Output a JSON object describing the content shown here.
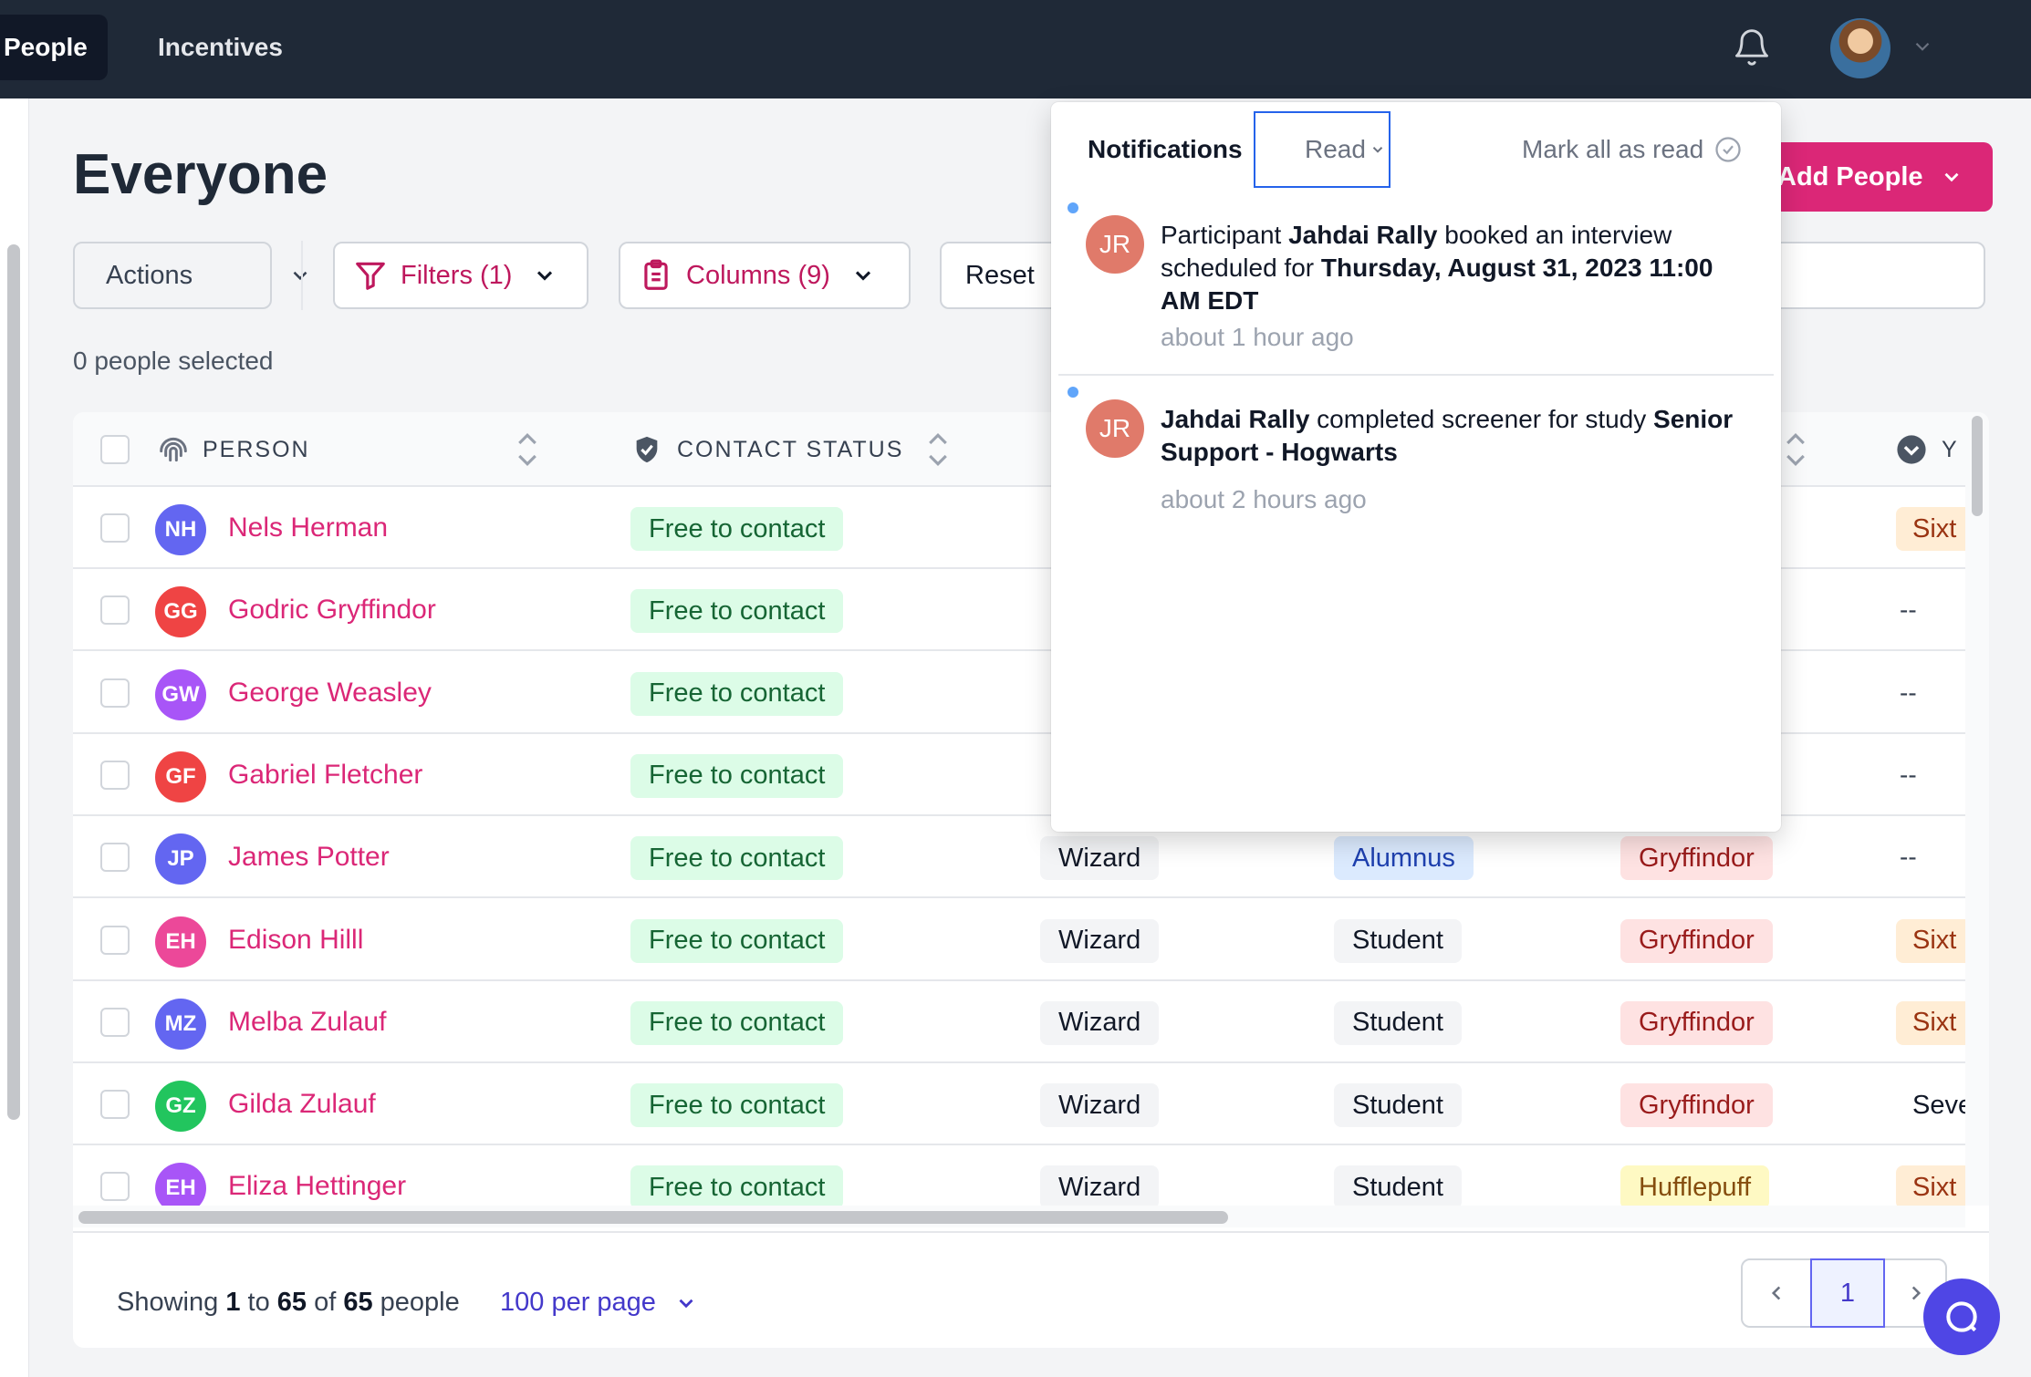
{
  "nav": {
    "people": "People",
    "incentives": "Incentives"
  },
  "page": {
    "title": "Everyone",
    "selected": "0 people selected",
    "add_label": "Add People"
  },
  "toolbar": {
    "actions": "Actions",
    "filters": "Filters (1)",
    "columns": "Columns (9)",
    "reset": "Reset"
  },
  "table": {
    "headers": {
      "person": "PERSON",
      "contact_status": "CONTACT STATUS",
      "y": "Y"
    },
    "rows": [
      {
        "initials": "NH",
        "name": "Nels Herman",
        "status": "Free to contact",
        "color": "#6366f1",
        "last": "Sixt"
      },
      {
        "initials": "GG",
        "name": "Godric Gryffindor",
        "status": "Free to contact",
        "color": "#ef4444",
        "last": "--"
      },
      {
        "initials": "GW",
        "name": "George Weasley",
        "status": "Free to contact",
        "color": "#a855f7",
        "last": "--"
      },
      {
        "initials": "GF",
        "name": "Gabriel Fletcher",
        "status": "Free to contact",
        "color": "#ef4444",
        "last": "--"
      },
      {
        "initials": "JP",
        "name": "James Potter",
        "status": "Free to contact",
        "color": "#6366f1",
        "type": "Wizard",
        "role": "Alumnus",
        "house": "Gryffindor",
        "last": "--"
      },
      {
        "initials": "EH",
        "name": "Edison Hilll",
        "status": "Free to contact",
        "color": "#ec4899",
        "type": "Wizard",
        "role": "Student",
        "house": "Gryffindor",
        "last": "Sixt"
      },
      {
        "initials": "MZ",
        "name": "Melba Zulauf",
        "status": "Free to contact",
        "color": "#6366f1",
        "type": "Wizard",
        "role": "Student",
        "house": "Gryffindor",
        "last": "Sixt"
      },
      {
        "initials": "GZ",
        "name": "Gilda Zulauf",
        "status": "Free to contact",
        "color": "#22c55e",
        "type": "Wizard",
        "role": "Student",
        "house": "Gryffindor",
        "last": "Seve"
      },
      {
        "initials": "EH",
        "name": "Eliza Hettinger",
        "status": "Free to contact",
        "color": "#a855f7",
        "type": "Wizard",
        "role": "Student",
        "house": "Hufflepuff",
        "last": "Sixt"
      }
    ]
  },
  "footer": {
    "showing_prefix": "Showing",
    "from": "1",
    "to_word": "to",
    "to": "65",
    "of_word": "of",
    "total": "65",
    "suffix": "people",
    "per_page": "100 per page",
    "page": "1"
  },
  "notifications": {
    "title": "Notifications",
    "filter": "Read",
    "mark_all": "Mark all as read",
    "items": [
      {
        "initials": "JR",
        "p1": "Participant ",
        "b1": "Jahdai Rally",
        "p2": " booked an interview scheduled for ",
        "b2": "Thursday, August 31, 2023 11:00 AM EDT",
        "time": "about 1 hour ago"
      },
      {
        "initials": "JR",
        "b1": "Jahdai Rally",
        "p2": " completed screener for study ",
        "b2": "Senior Support - Hogwarts",
        "time": "about 2 hours ago"
      }
    ]
  }
}
